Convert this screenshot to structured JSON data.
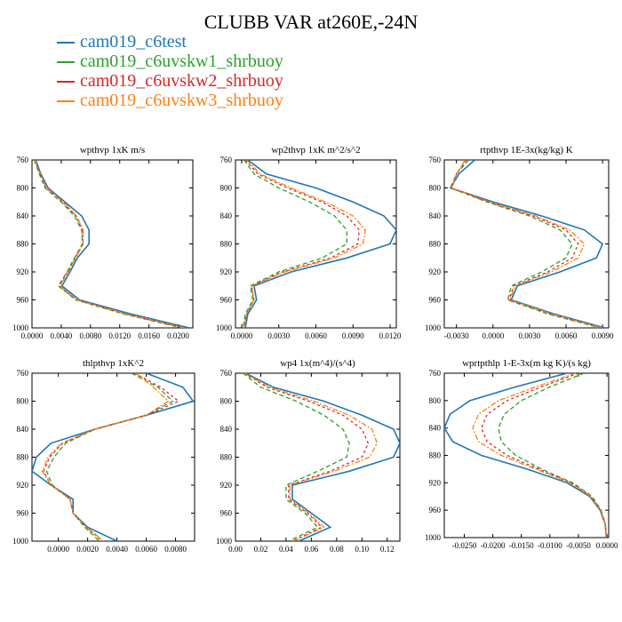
{
  "page": {
    "title": "CLUBB VAR at260E,-24N"
  },
  "legend": [
    {
      "name": "cam019_c6test",
      "color": "#1f77b4"
    },
    {
      "name": "cam019_c6uvskw1_shrbuoy",
      "color": "#2ca02c"
    },
    {
      "name": "cam019_c6uvskw2_shrbuoy",
      "color": "#d62728"
    },
    {
      "name": "cam019_c6uvskw3_shrbuoy",
      "color": "#ff7f0e"
    }
  ],
  "chart_data": [
    {
      "type": "line",
      "title": "wpthvp  1xK m/s",
      "xlim": [
        0.0,
        0.022
      ],
      "ylim": [
        760,
        1000
      ],
      "y_inverted": true,
      "xticks": [
        0.0,
        0.004,
        0.008,
        0.012,
        0.016,
        0.02
      ],
      "xtick_labels": [
        "0.0000",
        "0.0040",
        "0.0080",
        "0.0120",
        "0.0160",
        "0.0200"
      ],
      "yticks": [
        760,
        800,
        840,
        880,
        920,
        960,
        1000
      ],
      "ytick_labels": [
        "760",
        "800",
        "840",
        "880",
        "920",
        "960",
        "1000"
      ],
      "y": [
        760,
        780,
        800,
        820,
        840,
        860,
        880,
        900,
        920,
        940,
        960,
        980,
        1000
      ],
      "series": [
        {
          "color": "#1f77b4",
          "dash": "",
          "values": [
            0.0005,
            0.0012,
            0.0022,
            0.0045,
            0.0068,
            0.0078,
            0.0078,
            0.0062,
            0.0052,
            0.0041,
            0.0065,
            0.0135,
            0.0215
          ]
        },
        {
          "color": "#2ca02c",
          "dash": "5,3",
          "values": [
            0.0003,
            0.001,
            0.0018,
            0.004,
            0.0058,
            0.0068,
            0.0069,
            0.0058,
            0.0048,
            0.0036,
            0.006,
            0.0125,
            0.0205
          ]
        },
        {
          "color": "#d62728",
          "dash": "3,3",
          "values": [
            0.0004,
            0.0011,
            0.0019,
            0.0042,
            0.006,
            0.0069,
            0.007,
            0.0059,
            0.0049,
            0.0037,
            0.0061,
            0.0127,
            0.0207
          ]
        },
        {
          "color": "#ff7f0e",
          "dash": "6,2,2,2",
          "values": [
            0.0004,
            0.0011,
            0.002,
            0.0043,
            0.0061,
            0.007,
            0.007,
            0.006,
            0.005,
            0.0038,
            0.0062,
            0.0128,
            0.0209
          ]
        }
      ]
    },
    {
      "type": "line",
      "title": "wp2thvp  1xK m^2/s^2",
      "xlim": [
        -0.0005,
        0.0125
      ],
      "ylim": [
        760,
        1000
      ],
      "y_inverted": true,
      "xticks": [
        0.0,
        0.003,
        0.006,
        0.009,
        0.012
      ],
      "xtick_labels": [
        "0.0000",
        "0.0030",
        "0.0060",
        "0.0090",
        "0.0120"
      ],
      "yticks": [
        760,
        800,
        840,
        880,
        920,
        960,
        1000
      ],
      "ytick_labels": [
        "760",
        "800",
        "840",
        "880",
        "920",
        "960",
        "1000"
      ],
      "y": [
        760,
        780,
        800,
        820,
        840,
        860,
        880,
        900,
        920,
        940,
        960,
        980,
        1000
      ],
      "series": [
        {
          "color": "#1f77b4",
          "dash": "",
          "values": [
            0.0005,
            0.002,
            0.006,
            0.009,
            0.0115,
            0.0125,
            0.012,
            0.0085,
            0.004,
            0.001,
            0.0012,
            0.0005,
            0.0003
          ]
        },
        {
          "color": "#2ca02c",
          "dash": "5,3",
          "values": [
            0.0002,
            0.001,
            0.003,
            0.0055,
            0.0075,
            0.0085,
            0.0085,
            0.0065,
            0.003,
            0.0007,
            0.0009,
            0.0003,
            0.0001
          ]
        },
        {
          "color": "#d62728",
          "dash": "3,3",
          "values": [
            0.0003,
            0.0013,
            0.0037,
            0.0065,
            0.0085,
            0.0095,
            0.0094,
            0.0072,
            0.0033,
            0.0008,
            0.001,
            0.0004,
            0.0002
          ]
        },
        {
          "color": "#ff7f0e",
          "dash": "6,2,2,2",
          "values": [
            0.0004,
            0.0015,
            0.004,
            0.0068,
            0.009,
            0.01,
            0.0098,
            0.0075,
            0.0035,
            0.0008,
            0.001,
            0.0004,
            0.0002
          ]
        }
      ]
    },
    {
      "type": "line",
      "title": "rtpthvp  1E-3x(kg/kg) K",
      "xlim": [
        -0.004,
        0.0095
      ],
      "ylim": [
        760,
        1000
      ],
      "y_inverted": true,
      "xticks": [
        -0.003,
        0.0,
        0.003,
        0.006,
        0.009
      ],
      "xtick_labels": [
        "-0.0030",
        "0.0000",
        "0.0030",
        "0.0060",
        "0.0090"
      ],
      "yticks": [
        760,
        800,
        840,
        880,
        920,
        960,
        1000
      ],
      "ytick_labels": [
        "760",
        "800",
        "840",
        "880",
        "920",
        "960",
        "1000"
      ],
      "y": [
        760,
        780,
        800,
        820,
        840,
        860,
        880,
        900,
        920,
        940,
        960,
        980,
        1000
      ],
      "series": [
        {
          "color": "#1f77b4",
          "dash": "",
          "values": [
            -0.0015,
            -0.0028,
            -0.0035,
            0.0,
            0.004,
            0.0075,
            0.009,
            0.0085,
            0.0055,
            0.002,
            0.0015,
            0.005,
            0.0092
          ]
        },
        {
          "color": "#2ca02c",
          "dash": "5,3",
          "values": [
            -0.002,
            -0.003,
            -0.0035,
            -0.0005,
            0.003,
            0.0055,
            0.0065,
            0.006,
            0.004,
            0.0015,
            0.0012,
            0.0045,
            0.0088
          ]
        },
        {
          "color": "#d62728",
          "dash": "3,3",
          "values": [
            -0.0022,
            -0.003,
            -0.0034,
            -0.0004,
            0.0033,
            0.006,
            0.007,
            0.0065,
            0.0045,
            0.0017,
            0.0013,
            0.0047,
            0.009
          ]
        },
        {
          "color": "#ff7f0e",
          "dash": "6,2,2,2",
          "values": [
            -0.0023,
            -0.003,
            -0.0034,
            -0.0003,
            0.0035,
            0.0063,
            0.0075,
            0.007,
            0.0048,
            0.0018,
            0.0014,
            0.0048,
            0.009
          ]
        }
      ]
    },
    {
      "type": "line",
      "title": "thlpthvp  1xK^2",
      "xlim": [
        -0.0018,
        0.0093
      ],
      "ylim": [
        760,
        1000
      ],
      "y_inverted": true,
      "xticks": [
        0.0,
        0.002,
        0.004,
        0.006,
        0.008
      ],
      "xtick_labels": [
        "0.0000",
        "0.0020",
        "0.0040",
        "0.0060",
        "0.0080"
      ],
      "yticks": [
        760,
        800,
        840,
        880,
        920,
        960,
        1000
      ],
      "ytick_labels": [
        "760",
        "800",
        "840",
        "880",
        "920",
        "960",
        "1000"
      ],
      "y": [
        760,
        780,
        800,
        820,
        840,
        860,
        880,
        900,
        920,
        940,
        960,
        980,
        1000
      ],
      "series": [
        {
          "color": "#1f77b4",
          "dash": "",
          "values": [
            0.006,
            0.0085,
            0.0092,
            0.006,
            0.0025,
            -0.0005,
            -0.0015,
            -0.0018,
            -0.0005,
            0.001,
            0.001,
            0.002,
            0.004
          ]
        },
        {
          "color": "#2ca02c",
          "dash": "5,3",
          "values": [
            0.005,
            0.0068,
            0.0078,
            0.006,
            0.0025,
            0.0005,
            -0.0003,
            -0.0008,
            -0.0004,
            0.0008,
            0.001,
            0.0018,
            0.0028
          ]
        },
        {
          "color": "#d62728",
          "dash": "3,3",
          "values": [
            0.0052,
            0.007,
            0.0082,
            0.006,
            0.0025,
            0.0003,
            -0.0006,
            -0.001,
            -0.0005,
            0.0008,
            0.001,
            0.0019,
            0.003
          ]
        },
        {
          "color": "#ff7f0e",
          "dash": "6,2,2,2",
          "values": [
            0.0053,
            0.0065,
            0.0075,
            0.006,
            0.0025,
            0.0002,
            -0.0007,
            -0.0011,
            -0.0005,
            0.0008,
            0.001,
            0.0019,
            0.0031
          ]
        }
      ]
    },
    {
      "type": "line",
      "title": "wp4  1x(m^4)/(s^4)",
      "xlim": [
        0.0,
        0.13
      ],
      "ylim": [
        760,
        1000
      ],
      "y_inverted": true,
      "xticks": [
        0.0,
        0.02,
        0.04,
        0.06,
        0.08,
        0.1,
        0.12
      ],
      "xtick_labels": [
        "0.00",
        "0.02",
        "0.04",
        "0.06",
        "0.08",
        "0.10",
        "0.12"
      ],
      "yticks": [
        760,
        800,
        840,
        880,
        920,
        960,
        1000
      ],
      "ytick_labels": [
        "760",
        "800",
        "840",
        "880",
        "920",
        "960",
        "1000"
      ],
      "y": [
        760,
        780,
        800,
        820,
        840,
        860,
        880,
        900,
        920,
        940,
        960,
        980,
        1000
      ],
      "series": [
        {
          "color": "#1f77b4",
          "dash": "",
          "values": [
            0.008,
            0.03,
            0.07,
            0.1,
            0.125,
            0.13,
            0.125,
            0.09,
            0.045,
            0.045,
            0.06,
            0.075,
            0.05
          ]
        },
        {
          "color": "#2ca02c",
          "dash": "5,3",
          "values": [
            0.006,
            0.02,
            0.048,
            0.07,
            0.085,
            0.09,
            0.088,
            0.065,
            0.04,
            0.04,
            0.055,
            0.065,
            0.042
          ]
        },
        {
          "color": "#d62728",
          "dash": "3,3",
          "values": [
            0.007,
            0.025,
            0.058,
            0.085,
            0.1,
            0.105,
            0.1,
            0.075,
            0.042,
            0.042,
            0.057,
            0.068,
            0.045
          ]
        },
        {
          "color": "#ff7f0e",
          "dash": "6,2,2,2",
          "values": [
            0.007,
            0.027,
            0.062,
            0.09,
            0.108,
            0.112,
            0.106,
            0.078,
            0.043,
            0.043,
            0.058,
            0.07,
            0.046
          ]
        }
      ]
    },
    {
      "type": "line",
      "title": "wprtpthlp  1-E-3x(m kg K)/(s kg)",
      "xlim": [
        -0.0285,
        0.0003
      ],
      "ylim": [
        760,
        1000
      ],
      "y_inverted": true,
      "xticks": [
        -0.025,
        -0.02,
        -0.015,
        -0.01,
        -0.005,
        0.0
      ],
      "xtick_labels": [
        "-0.0250",
        "-0.0200",
        "-0.0150",
        "-0.0100",
        "-0.0050",
        "0.0000"
      ],
      "yticks": [
        760,
        800,
        840,
        880,
        920,
        960,
        1000
      ],
      "ytick_labels": [
        "760",
        "800",
        "840",
        "880",
        "920",
        "960",
        "1000"
      ],
      "y": [
        760,
        780,
        800,
        820,
        840,
        860,
        880,
        900,
        920,
        940,
        960,
        980,
        1000
      ],
      "series": [
        {
          "color": "#1f77b4",
          "dash": "",
          "values": [
            -0.007,
            -0.016,
            -0.024,
            -0.0275,
            -0.0285,
            -0.027,
            -0.022,
            -0.014,
            -0.007,
            -0.003,
            -0.0012,
            -0.0003,
            -0.0001
          ]
        },
        {
          "color": "#2ca02c",
          "dash": "5,3",
          "values": [
            -0.004,
            -0.01,
            -0.015,
            -0.018,
            -0.019,
            -0.0185,
            -0.016,
            -0.0115,
            -0.006,
            -0.0026,
            -0.001,
            -0.0003,
            -0.0001
          ]
        },
        {
          "color": "#d62728",
          "dash": "3,3",
          "values": [
            -0.005,
            -0.0115,
            -0.0175,
            -0.021,
            -0.022,
            -0.021,
            -0.0175,
            -0.012,
            -0.0063,
            -0.0027,
            -0.0011,
            -0.0003,
            -0.0001
          ]
        },
        {
          "color": "#ff7f0e",
          "dash": "6,2,2,2",
          "values": [
            -0.0055,
            -0.0125,
            -0.019,
            -0.0225,
            -0.0235,
            -0.0225,
            -0.0185,
            -0.0125,
            -0.0065,
            -0.0028,
            -0.0011,
            -0.0003,
            -0.0001
          ]
        }
      ]
    }
  ]
}
